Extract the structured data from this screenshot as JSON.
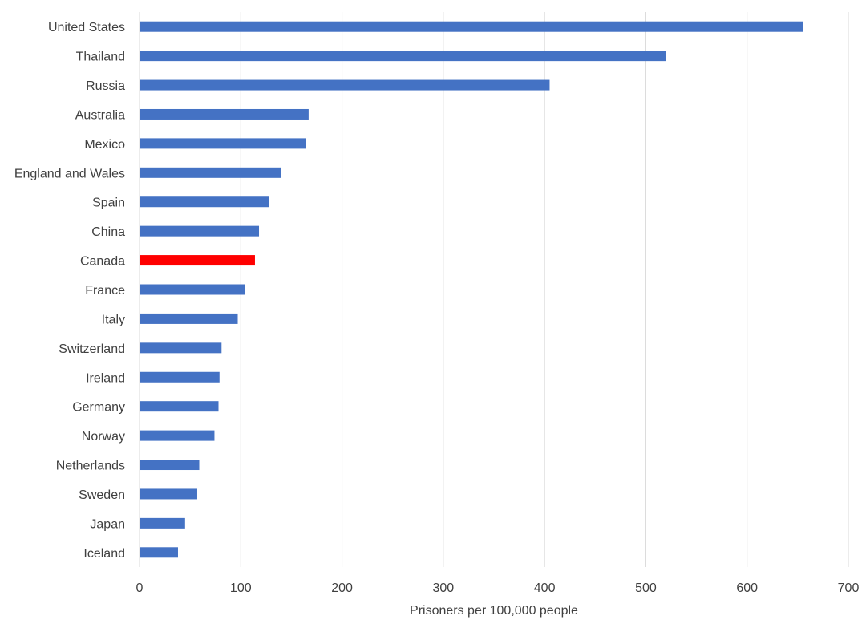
{
  "chart_data": {
    "type": "bar",
    "orientation": "horizontal",
    "title": "",
    "xlabel": "Prisoners per 100,000 people",
    "ylabel": "",
    "xlim": [
      0,
      700
    ],
    "x_ticks": [
      0,
      100,
      200,
      300,
      400,
      500,
      600,
      700
    ],
    "grid": true,
    "legend": "none",
    "bar_color": "#4472c4",
    "highlight_color": "#ff0000",
    "highlight_category": "Canada",
    "categories": [
      "United States",
      "Thailand",
      "Russia",
      "Australia",
      "Mexico",
      "England and Wales",
      "Spain",
      "China",
      "Canada",
      "France",
      "Italy",
      "Switzerland",
      "Ireland",
      "Germany",
      "Norway",
      "Netherlands",
      "Sweden",
      "Japan",
      "Iceland"
    ],
    "values": [
      655,
      520,
      405,
      167,
      164,
      140,
      128,
      118,
      114,
      104,
      97,
      81,
      79,
      78,
      74,
      59,
      57,
      45,
      38
    ]
  }
}
